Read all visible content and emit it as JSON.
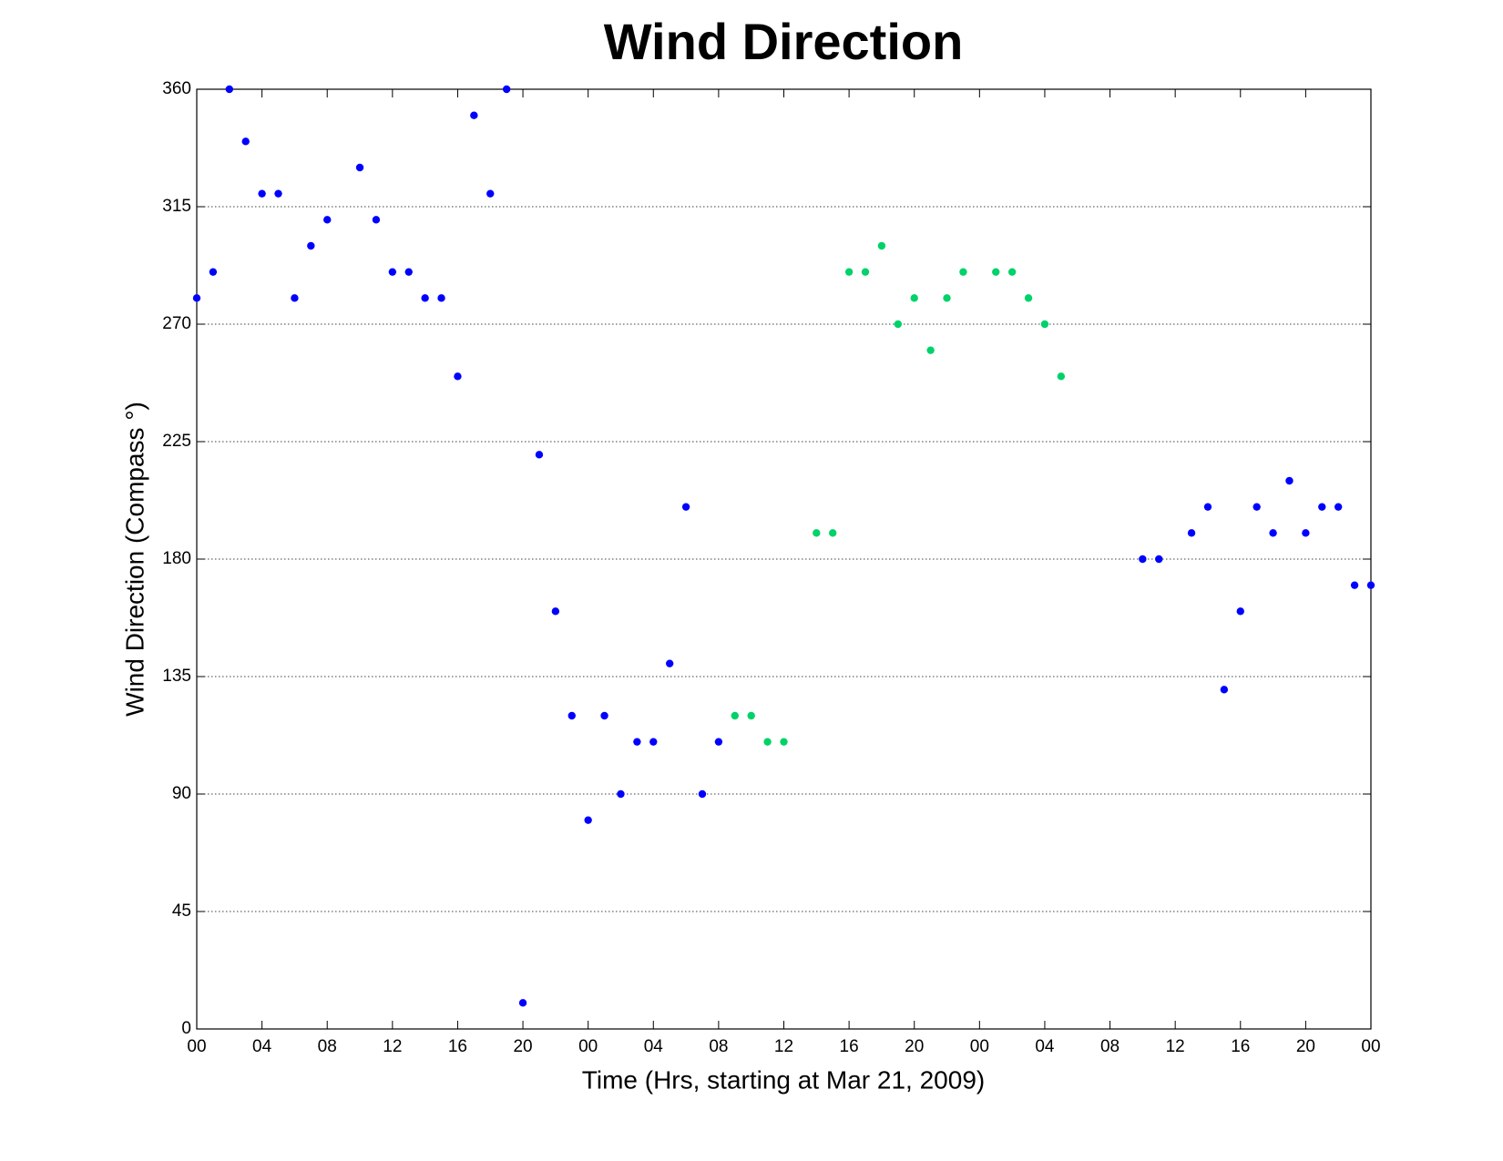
{
  "chart_data": {
    "type": "scatter",
    "title": "Wind Direction",
    "x_label": "Time (Hrs, starting at Mar 21, 2009)",
    "y_label": "Wind Direction (Compass  °)",
    "xlim": [
      0,
      72
    ],
    "ylim": [
      0,
      360
    ],
    "xticks": [
      {
        "value": 0,
        "label": "00"
      },
      {
        "value": 4,
        "label": "04"
      },
      {
        "value": 8,
        "label": "08"
      },
      {
        "value": 12,
        "label": "12"
      },
      {
        "value": 16,
        "label": "16"
      },
      {
        "value": 20,
        "label": "20"
      },
      {
        "value": 24,
        "label": "00"
      },
      {
        "value": 28,
        "label": "04"
      },
      {
        "value": 32,
        "label": "08"
      },
      {
        "value": 36,
        "label": "12"
      },
      {
        "value": 40,
        "label": "16"
      },
      {
        "value": 44,
        "label": "20"
      },
      {
        "value": 48,
        "label": "00"
      },
      {
        "value": 52,
        "label": "04"
      },
      {
        "value": 56,
        "label": "08"
      },
      {
        "value": 60,
        "label": "12"
      },
      {
        "value": 64,
        "label": "16"
      },
      {
        "value": 68,
        "label": "20"
      },
      {
        "value": 72,
        "label": "00"
      }
    ],
    "yticks": [
      0,
      45,
      90,
      135,
      180,
      225,
      270,
      315,
      360
    ],
    "grid": true,
    "series": [
      {
        "color": "#0000ff",
        "x": [
          0,
          1,
          2,
          3,
          4,
          5,
          6,
          7,
          8,
          10,
          11,
          12,
          13,
          14,
          15,
          16,
          17,
          18,
          19,
          20,
          21,
          22,
          23,
          24,
          25,
          26,
          27,
          28,
          29,
          30,
          31,
          32,
          58,
          59,
          61,
          62,
          63,
          64,
          65,
          66,
          67,
          68,
          69,
          70,
          71,
          72
        ],
        "values": [
          280,
          290,
          360,
          340,
          320,
          320,
          280,
          300,
          310,
          330,
          310,
          290,
          290,
          280,
          280,
          250,
          350,
          320,
          360,
          10,
          220,
          160,
          120,
          80,
          120,
          90,
          110,
          110,
          140,
          200,
          90,
          110,
          180,
          180,
          190,
          200,
          130,
          160,
          200,
          190,
          210,
          190,
          200,
          200,
          170,
          170
        ]
      },
      {
        "color": "#00d26a",
        "x": [
          33,
          34,
          35,
          36,
          38,
          39,
          40,
          41,
          42,
          43,
          44,
          45,
          46,
          47,
          49,
          50,
          51,
          52,
          53
        ],
        "values": [
          120,
          120,
          110,
          110,
          190,
          190,
          290,
          290,
          300,
          270,
          280,
          260,
          280,
          290,
          290,
          290,
          280,
          270,
          250
        ]
      }
    ]
  }
}
